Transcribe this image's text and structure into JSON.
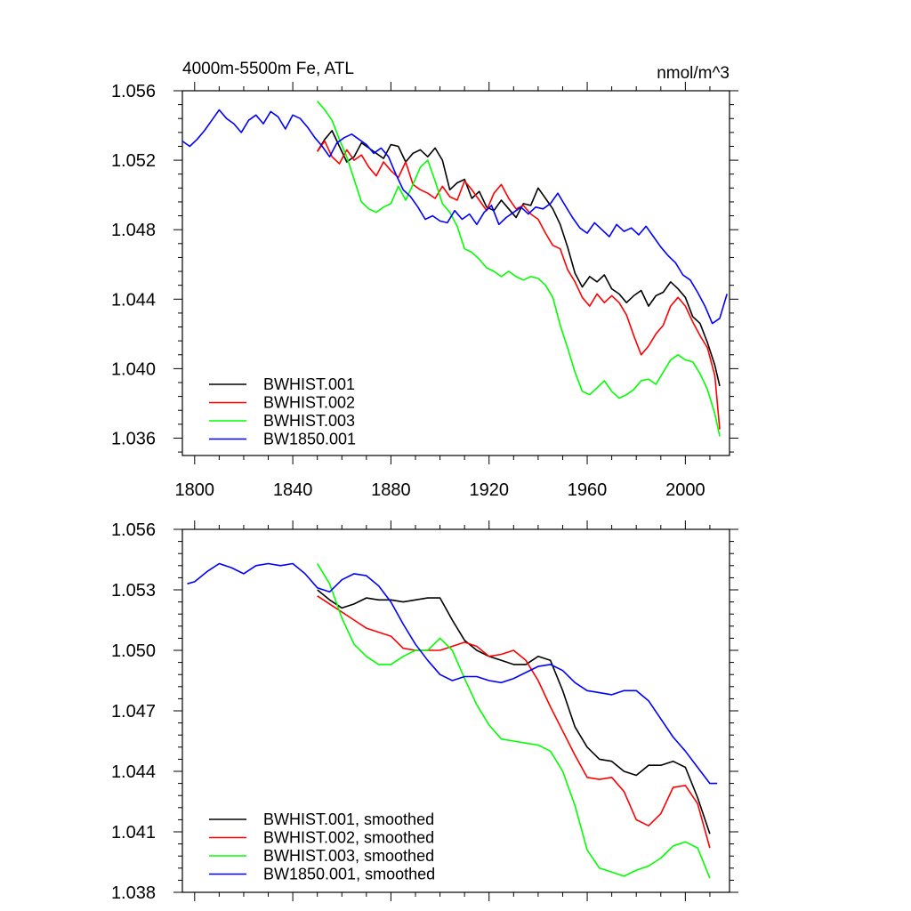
{
  "chart_data": [
    {
      "type": "line",
      "title": "4000m-5500m Fe, ATL",
      "units": "nmol/m^3",
      "xlabel": "",
      "ylabel": "",
      "xlim": [
        1795,
        2018
      ],
      "ylim": [
        1.035,
        1.056
      ],
      "x_ticks": [
        1800,
        1840,
        1880,
        1920,
        1960,
        2000
      ],
      "x_tick_labels": [
        "1800",
        "1840",
        "1880",
        "1920",
        "1960",
        "2000"
      ],
      "y_ticks": [
        1.036,
        1.04,
        1.044,
        1.048,
        1.052,
        1.056
      ],
      "y_tick_labels": [
        "1.036",
        "1.040",
        "1.044",
        "1.048",
        "1.052",
        "1.056"
      ],
      "legend_position": "bottom-left",
      "series": [
        {
          "name": "BWHIST.001",
          "color": "#000000",
          "x": [
            1850,
            1853,
            1856,
            1859,
            1862,
            1865,
            1868,
            1871,
            1874,
            1877,
            1880,
            1883,
            1886,
            1889,
            1892,
            1895,
            1898,
            1901,
            1904,
            1907,
            1910,
            1913,
            1916,
            1919,
            1922,
            1925,
            1928,
            1931,
            1934,
            1937,
            1940,
            1943,
            1946,
            1949,
            1952,
            1955,
            1958,
            1961,
            1964,
            1967,
            1970,
            1973,
            1976,
            1979,
            1982,
            1985,
            1988,
            1991,
            1994,
            1997,
            2000,
            2003,
            2006,
            2009,
            2012,
            2014
          ],
          "y": [
            1.0525,
            1.0532,
            1.0537,
            1.0528,
            1.0519,
            1.0522,
            1.053,
            1.0527,
            1.0524,
            1.0521,
            1.0529,
            1.0528,
            1.0519,
            1.0524,
            1.0526,
            1.0522,
            1.0527,
            1.052,
            1.0503,
            1.0507,
            1.0509,
            1.0498,
            1.0502,
            1.0493,
            1.0491,
            1.0497,
            1.0492,
            1.0487,
            1.0495,
            1.0494,
            1.0504,
            1.0498,
            1.0492,
            1.0483,
            1.047,
            1.0455,
            1.0447,
            1.0453,
            1.045,
            1.0454,
            1.0446,
            1.0443,
            1.0438,
            1.0442,
            1.0445,
            1.0436,
            1.0442,
            1.0444,
            1.045,
            1.0446,
            1.0441,
            1.043,
            1.0426,
            1.0415,
            1.0402,
            1.039
          ]
        },
        {
          "name": "BWHIST.002",
          "color": "#ff0000",
          "x": [
            1850,
            1853,
            1856,
            1859,
            1862,
            1865,
            1868,
            1871,
            1874,
            1877,
            1880,
            1883,
            1886,
            1889,
            1892,
            1895,
            1898,
            1901,
            1904,
            1907,
            1910,
            1913,
            1916,
            1919,
            1922,
            1925,
            1928,
            1931,
            1934,
            1937,
            1940,
            1943,
            1946,
            1949,
            1952,
            1955,
            1958,
            1961,
            1964,
            1967,
            1970,
            1973,
            1976,
            1979,
            1982,
            1985,
            1988,
            1991,
            1994,
            1997,
            2000,
            2003,
            2006,
            2009,
            2012,
            2014
          ],
          "y": [
            1.0525,
            1.0531,
            1.0522,
            1.0518,
            1.0526,
            1.052,
            1.0523,
            1.0516,
            1.0511,
            1.0519,
            1.0514,
            1.051,
            1.0519,
            1.0506,
            1.0503,
            1.0501,
            1.0498,
            1.0505,
            1.0499,
            1.0497,
            1.0508,
            1.0503,
            1.0497,
            1.0491,
            1.0501,
            1.0506,
            1.0498,
            1.0492,
            1.0494,
            1.0489,
            1.0486,
            1.0478,
            1.0471,
            1.0469,
            1.0457,
            1.045,
            1.0441,
            1.0436,
            1.0443,
            1.0438,
            1.0442,
            1.0438,
            1.0431,
            1.0419,
            1.0408,
            1.0413,
            1.042,
            1.0425,
            1.0436,
            1.0441,
            1.0436,
            1.0427,
            1.0419,
            1.0412,
            1.0396,
            1.0365
          ]
        },
        {
          "name": "BWHIST.003",
          "color": "#00ff00",
          "x": [
            1850,
            1853,
            1856,
            1859,
            1862,
            1865,
            1868,
            1871,
            1874,
            1877,
            1880,
            1883,
            1886,
            1889,
            1892,
            1895,
            1898,
            1901,
            1904,
            1907,
            1910,
            1913,
            1916,
            1919,
            1922,
            1925,
            1928,
            1931,
            1934,
            1937,
            1940,
            1943,
            1946,
            1949,
            1952,
            1955,
            1958,
            1961,
            1964,
            1967,
            1970,
            1973,
            1976,
            1979,
            1982,
            1985,
            1988,
            1991,
            1994,
            1997,
            2000,
            2003,
            2006,
            2009,
            2012,
            2014
          ],
          "y": [
            1.0554,
            1.0549,
            1.0543,
            1.0532,
            1.0522,
            1.0509,
            1.0496,
            1.0492,
            1.049,
            1.0493,
            1.0495,
            1.0505,
            1.0497,
            1.0506,
            1.0516,
            1.052,
            1.0508,
            1.0495,
            1.049,
            1.0482,
            1.0469,
            1.0467,
            1.0463,
            1.0458,
            1.0456,
            1.0453,
            1.0456,
            1.0453,
            1.0451,
            1.0453,
            1.0452,
            1.0448,
            1.0441,
            1.0425,
            1.0412,
            1.0398,
            1.0387,
            1.0385,
            1.0389,
            1.0393,
            1.0387,
            1.0383,
            1.0385,
            1.0388,
            1.0393,
            1.0394,
            1.0391,
            1.0398,
            1.0405,
            1.0408,
            1.0405,
            1.0404,
            1.0397,
            1.0388,
            1.0374,
            1.0361
          ]
        },
        {
          "name": "BW1850.001",
          "color": "#0000ff",
          "x": [
            1795,
            1798,
            1801,
            1804,
            1807,
            1810,
            1813,
            1816,
            1819,
            1822,
            1825,
            1828,
            1831,
            1834,
            1837,
            1840,
            1843,
            1846,
            1849,
            1852,
            1855,
            1858,
            1861,
            1864,
            1867,
            1870,
            1873,
            1876,
            1879,
            1882,
            1885,
            1888,
            1891,
            1894,
            1897,
            1900,
            1903,
            1906,
            1909,
            1912,
            1915,
            1918,
            1921,
            1924,
            1927,
            1930,
            1933,
            1936,
            1939,
            1942,
            1945,
            1948,
            1951,
            1954,
            1957,
            1960,
            1963,
            1966,
            1969,
            1972,
            1975,
            1978,
            1981,
            1984,
            1987,
            1990,
            1993,
            1996,
            1999,
            2002,
            2005,
            2008,
            2011,
            2014,
            2017
          ],
          "y": [
            1.0531,
            1.0528,
            1.0532,
            1.0537,
            1.0543,
            1.0549,
            1.0544,
            1.0541,
            1.0536,
            1.0543,
            1.0546,
            1.0541,
            1.0548,
            1.0545,
            1.0538,
            1.0546,
            1.0544,
            1.0539,
            1.0533,
            1.0528,
            1.0522,
            1.053,
            1.0533,
            1.0535,
            1.0532,
            1.0529,
            1.0524,
            1.0527,
            1.0522,
            1.0512,
            1.0503,
            1.0499,
            1.0493,
            1.0486,
            1.0488,
            1.0485,
            1.0484,
            1.0491,
            1.0486,
            1.0489,
            1.0483,
            1.049,
            1.0494,
            1.0483,
            1.0487,
            1.049,
            1.0493,
            1.0489,
            1.0493,
            1.0492,
            1.0495,
            1.0501,
            1.0494,
            1.0487,
            1.0481,
            1.0478,
            1.0484,
            1.048,
            1.0476,
            1.0483,
            1.0479,
            1.0481,
            1.0477,
            1.0482,
            1.0476,
            1.047,
            1.0465,
            1.0461,
            1.0454,
            1.0451,
            1.0444,
            1.0436,
            1.0426,
            1.0429,
            1.0443
          ]
        }
      ]
    },
    {
      "type": "line",
      "title": "",
      "xlabel": "",
      "ylabel": "",
      "xlim": [
        1795,
        2018
      ],
      "ylim": [
        1.038,
        1.056
      ],
      "x_ticks": [
        1800,
        1840,
        1880,
        1920,
        1960,
        2000
      ],
      "x_tick_labels": [],
      "y_ticks": [
        1.038,
        1.041,
        1.044,
        1.047,
        1.05,
        1.053,
        1.056
      ],
      "y_tick_labels": [
        "1.038",
        "1.041",
        "1.044",
        "1.047",
        "1.050",
        "1.053",
        "1.056"
      ],
      "legend_position": "bottom-left",
      "series": [
        {
          "name": "BWHIST.001, smoothed",
          "color": "#000000",
          "x": [
            1850,
            1855,
            1860,
            1865,
            1870,
            1875,
            1880,
            1885,
            1890,
            1895,
            1900,
            1905,
            1910,
            1915,
            1920,
            1925,
            1930,
            1935,
            1940,
            1945,
            1950,
            1955,
            1960,
            1965,
            1970,
            1975,
            1980,
            1985,
            1990,
            1995,
            2000,
            2005,
            2010
          ],
          "y": [
            1.053,
            1.0525,
            1.0521,
            1.0523,
            1.0526,
            1.0525,
            1.0525,
            1.0524,
            1.0525,
            1.0526,
            1.0526,
            1.0515,
            1.0505,
            1.05,
            1.0497,
            1.0495,
            1.0493,
            1.0493,
            1.0497,
            1.0495,
            1.048,
            1.0462,
            1.0452,
            1.0446,
            1.0445,
            1.044,
            1.0438,
            1.0443,
            1.0443,
            1.0445,
            1.0442,
            1.0427,
            1.0409
          ]
        },
        {
          "name": "BWHIST.002, smoothed",
          "color": "#ff0000",
          "x": [
            1850,
            1855,
            1860,
            1865,
            1870,
            1875,
            1880,
            1885,
            1890,
            1895,
            1900,
            1905,
            1910,
            1915,
            1920,
            1925,
            1930,
            1935,
            1940,
            1945,
            1950,
            1955,
            1960,
            1965,
            1970,
            1975,
            1980,
            1985,
            1990,
            1995,
            2000,
            2005,
            2010
          ],
          "y": [
            1.0527,
            1.0523,
            1.0519,
            1.0515,
            1.0511,
            1.0509,
            1.0507,
            1.0501,
            1.05,
            1.05,
            1.05,
            1.0502,
            1.0504,
            1.0502,
            1.0497,
            1.0498,
            1.05,
            1.0495,
            1.0485,
            1.0472,
            1.046,
            1.0448,
            1.0437,
            1.0436,
            1.0437,
            1.043,
            1.0416,
            1.0413,
            1.0419,
            1.0432,
            1.0433,
            1.0424,
            1.0402
          ]
        },
        {
          "name": "BWHIST.003, smoothed",
          "color": "#00ff00",
          "x": [
            1850,
            1855,
            1860,
            1865,
            1870,
            1875,
            1880,
            1885,
            1890,
            1895,
            1900,
            1905,
            1910,
            1915,
            1920,
            1925,
            1930,
            1935,
            1940,
            1945,
            1950,
            1955,
            1960,
            1965,
            1970,
            1975,
            1980,
            1985,
            1990,
            1995,
            2000,
            2005,
            2010
          ],
          "y": [
            1.0543,
            1.0533,
            1.0516,
            1.0503,
            1.0497,
            1.0493,
            1.0493,
            1.0497,
            1.05,
            1.05,
            1.0506,
            1.05,
            1.0486,
            1.0473,
            1.0463,
            1.0456,
            1.0455,
            1.0454,
            1.0453,
            1.045,
            1.044,
            1.0423,
            1.0401,
            1.0392,
            1.039,
            1.0388,
            1.0391,
            1.0393,
            1.0397,
            1.0403,
            1.0405,
            1.0402,
            1.0387
          ]
        },
        {
          "name": "BW1850.001, smoothed",
          "color": "#0000ff",
          "x": [
            1797,
            1800,
            1805,
            1810,
            1815,
            1820,
            1825,
            1830,
            1835,
            1840,
            1845,
            1850,
            1855,
            1860,
            1865,
            1870,
            1875,
            1880,
            1885,
            1890,
            1895,
            1900,
            1905,
            1910,
            1915,
            1920,
            1925,
            1930,
            1935,
            1940,
            1945,
            1950,
            1955,
            1960,
            1965,
            1970,
            1975,
            1980,
            1985,
            1990,
            1995,
            2000,
            2005,
            2010,
            2013
          ],
          "y": [
            1.0533,
            1.0534,
            1.0539,
            1.0543,
            1.0541,
            1.0538,
            1.0542,
            1.0543,
            1.0542,
            1.0543,
            1.0538,
            1.0531,
            1.0529,
            1.0535,
            1.0538,
            1.0537,
            1.0532,
            1.0524,
            1.0513,
            1.0503,
            1.0495,
            1.0488,
            1.0485,
            1.0487,
            1.0487,
            1.0485,
            1.0484,
            1.0486,
            1.0489,
            1.0492,
            1.0493,
            1.049,
            1.0484,
            1.048,
            1.0479,
            1.0478,
            1.048,
            1.048,
            1.0475,
            1.0466,
            1.0457,
            1.045,
            1.0442,
            1.0434,
            1.0434
          ]
        }
      ]
    }
  ]
}
